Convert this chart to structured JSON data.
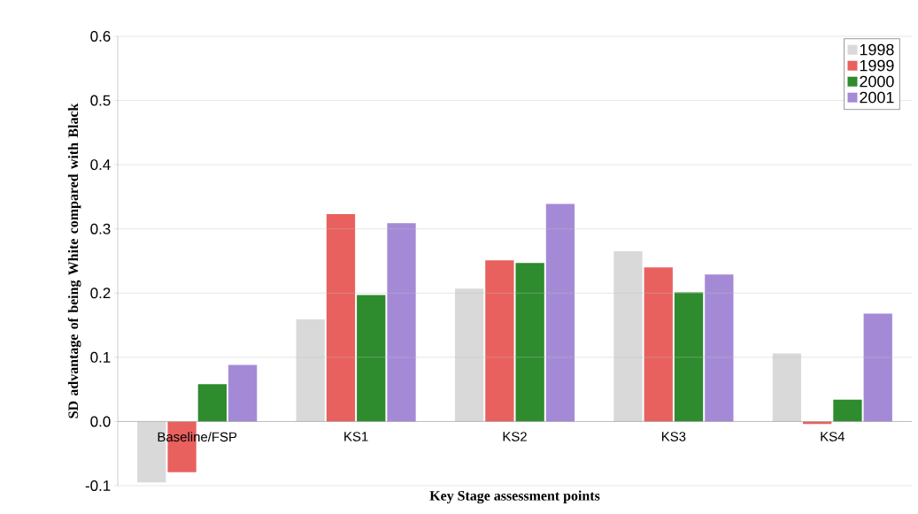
{
  "chart_data": {
    "type": "bar",
    "xlabel": "Key Stage assessment points",
    "ylabel": "SD advantage of being White compared with Black",
    "categories": [
      "Baseline/FSP",
      "KS1",
      "KS2",
      "KS3",
      "KS4"
    ],
    "series": [
      {
        "name": "1998",
        "color": "#d9d9d9",
        "values": [
          -0.095,
          0.159,
          0.207,
          0.265,
          0.106
        ]
      },
      {
        "name": "1999",
        "color": "#e8615f",
        "values": [
          -0.079,
          0.323,
          0.251,
          0.24,
          -0.004
        ]
      },
      {
        "name": "2000",
        "color": "#2e8b2e",
        "values": [
          0.058,
          0.197,
          0.247,
          0.201,
          0.034
        ]
      },
      {
        "name": "2001",
        "color": "#a48ad6",
        "values": [
          0.088,
          0.309,
          0.339,
          0.229,
          0.168
        ]
      }
    ],
    "ylim": [
      -0.1,
      0.6
    ],
    "yticks": [
      -0.1,
      {
        "value": 0,
        "label": "0.0"
      },
      0.1,
      0.2,
      0.3,
      0.4,
      0.5,
      0.6
    ],
    "grid": "y",
    "legend": "top right"
  }
}
